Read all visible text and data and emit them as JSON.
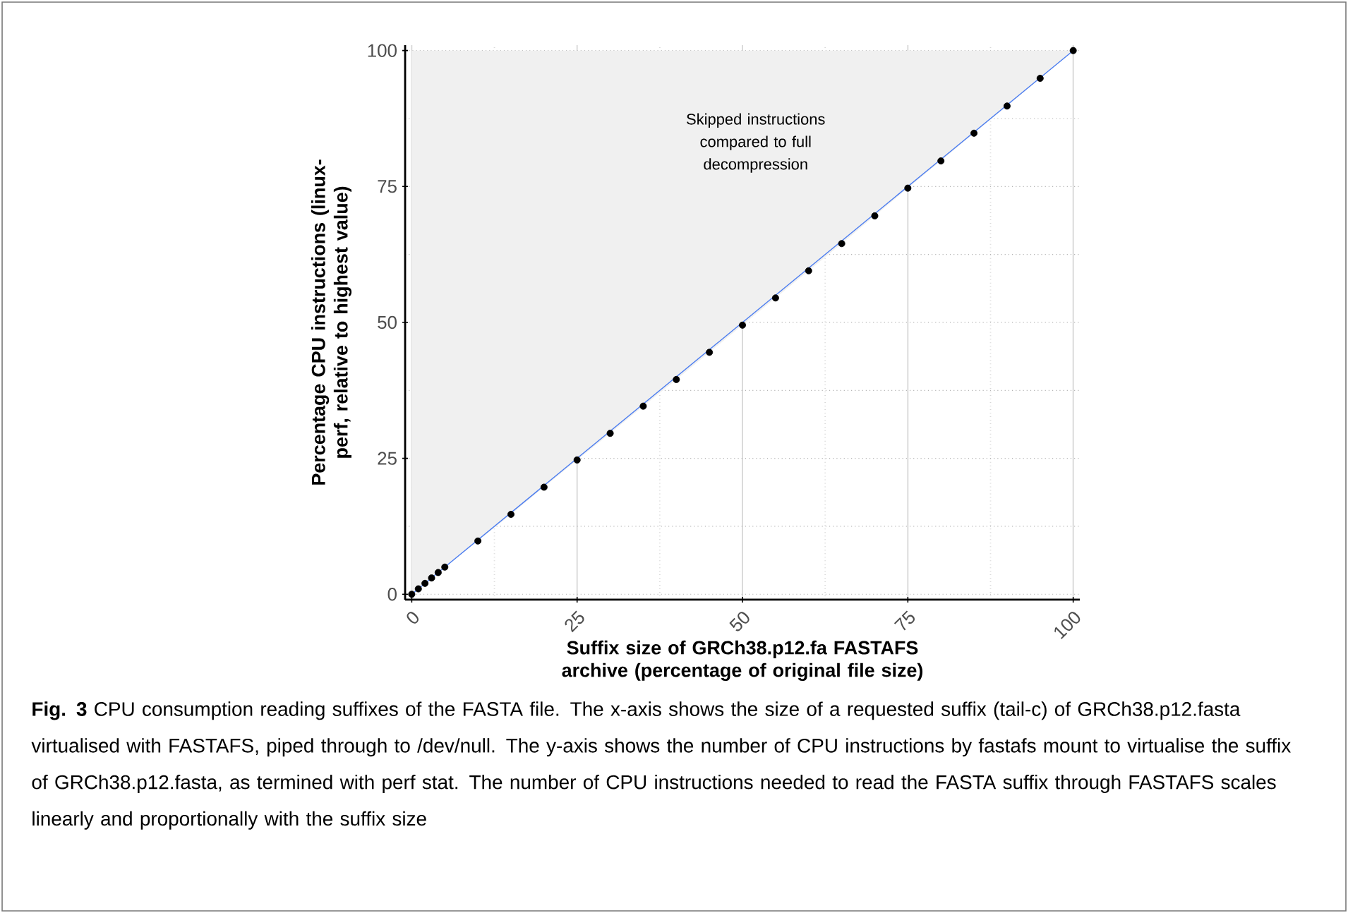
{
  "chart_data": {
    "type": "scatter",
    "xlabel": "Suffix size of GRCh38.p12.fa FASTAFS archive (percentage of original file size)",
    "ylabel": "Percentage CPU instructions (linux-perf, relative to highest value)",
    "xlim": [
      -1,
      101
    ],
    "ylim": [
      -1,
      101
    ],
    "xticks": [
      0,
      25,
      50,
      75,
      100
    ],
    "yticks": [
      0,
      25,
      50,
      75,
      100
    ],
    "grid": true,
    "marker": "circle",
    "series": [
      {
        "color": "#000000",
        "x": [
          0,
          1,
          2,
          3,
          4,
          5,
          10,
          15,
          20,
          25,
          30,
          35,
          40,
          45,
          50,
          55,
          60,
          65,
          70,
          75,
          80,
          85,
          90,
          95,
          100
        ],
        "values": [
          0,
          1,
          2,
          3,
          4,
          5,
          9.8,
          14.7,
          19.7,
          24.7,
          29.6,
          34.6,
          39.5,
          44.5,
          49.5,
          54.5,
          59.5,
          64.5,
          69.6,
          74.7,
          79.7,
          84.8,
          89.8,
          94.9,
          100
        ],
        "lower": [
          0,
          1,
          2,
          3,
          4,
          5,
          9.8,
          14.7,
          19.7,
          24.7,
          29.6,
          34.6,
          39.5,
          44.5,
          49.5,
          54.5,
          59.5,
          64.5,
          69.6,
          74.7,
          79.7,
          84.8,
          89.8,
          94.9,
          100
        ],
        "upper": [
          100,
          100,
          100,
          100,
          100,
          100,
          100,
          100,
          100,
          100,
          100,
          100,
          100,
          100,
          100,
          100,
          100,
          100,
          100,
          100,
          100,
          100,
          100,
          100,
          100
        ]
      },
      {
        "type": "line",
        "color": "#4a7cf0",
        "line_style": "solid",
        "marker": "none",
        "x": [
          0,
          100
        ],
        "values": [
          0,
          100
        ]
      }
    ],
    "annotations": [
      "Skipped instructions compared to full decompression",
      "**Fig. 3** CPU consumption reading suffixes of the FASTA file. The x-axis shows the size of a requested suffix (tail-c) of GRCh38.p12.fasta virtualised with FASTAFS, piped through to /dev/null. The y-axis shows the number of CPU instructions by fastafs mount to virtualise the suffix of GRCh38.p12.fasta, as termined with perf stat. The number of CPU instructions needed to read the FASTA suffix through FASTAFS scales linearly and proportionally with the suffix size"
    ]
  }
}
